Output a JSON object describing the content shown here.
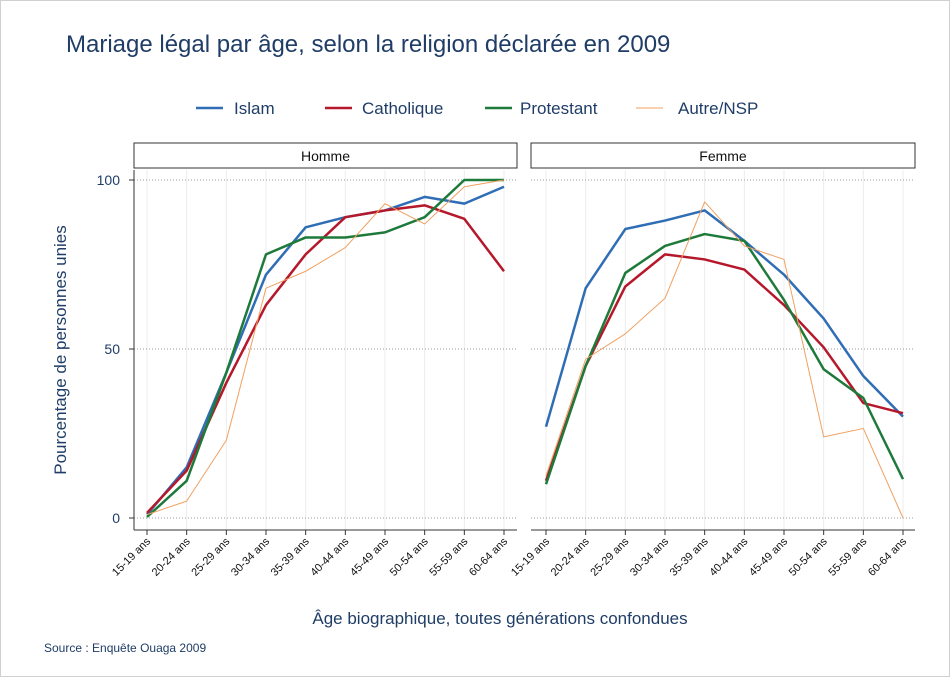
{
  "title": "Mariage légal par âge, selon la religion déclarée en 2009",
  "ylabel": "Pourcentage de personnes unies",
  "xlabel": "Âge biographique, toutes générations confondues",
  "source": "Source : Enquête Ouaga 2009",
  "chart_data": [
    {
      "type": "line",
      "panel_title": "Homme",
      "categories": [
        "15-19 ans",
        "20-24 ans",
        "25-29 ans",
        "30-34 ans",
        "35-39 ans",
        "40-44 ans",
        "45-49 ans",
        "50-54 ans",
        "55-59 ans",
        "60-64 ans"
      ],
      "ylim": [
        0,
        100
      ],
      "yticks": [
        0,
        50,
        100
      ],
      "grid": true,
      "series": [
        {
          "name": "Islam",
          "color": "#2f6db5",
          "values": [
            1,
            15,
            43,
            72,
            86,
            89,
            91,
            95,
            93,
            98
          ]
        },
        {
          "name": "Catholique",
          "color": "#b5182b",
          "values": [
            1.5,
            14,
            40,
            63,
            78,
            89,
            91,
            92.5,
            88.5,
            73
          ]
        },
        {
          "name": "Protestant",
          "color": "#1e7a3b",
          "values": [
            0.3,
            11,
            43,
            78,
            83,
            83,
            84.5,
            89,
            100,
            100
          ]
        },
        {
          "name": "Autre/NSP",
          "color": "#f0a060",
          "values": [
            1,
            5,
            23,
            68,
            73,
            80,
            93,
            87,
            98,
            100
          ]
        }
      ]
    },
    {
      "type": "line",
      "panel_title": "Femme",
      "categories": [
        "15-19 ans",
        "20-24 ans",
        "25-29 ans",
        "30-34 ans",
        "35-39 ans",
        "40-44 ans",
        "45-49 ans",
        "50-54 ans",
        "55-59 ans",
        "60-64 ans"
      ],
      "ylim": [
        0,
        100
      ],
      "yticks": [
        0,
        50,
        100
      ],
      "grid": true,
      "series": [
        {
          "name": "Islam",
          "color": "#2f6db5",
          "values": [
            27,
            68,
            85.5,
            88,
            91,
            82,
            72,
            59,
            42,
            30
          ]
        },
        {
          "name": "Catholique",
          "color": "#b5182b",
          "values": [
            11,
            45,
            68.5,
            78,
            76.5,
            73.5,
            63,
            50.5,
            34,
            31
          ]
        },
        {
          "name": "Protestant",
          "color": "#1e7a3b",
          "values": [
            10,
            45,
            72.5,
            80.5,
            84,
            82,
            64.5,
            44,
            35.5,
            11.5
          ]
        },
        {
          "name": "Autre/NSP",
          "color": "#f0a060",
          "values": [
            12.5,
            47,
            54.5,
            65,
            93.5,
            80.5,
            76.5,
            24,
            26.5,
            0
          ]
        }
      ]
    }
  ]
}
